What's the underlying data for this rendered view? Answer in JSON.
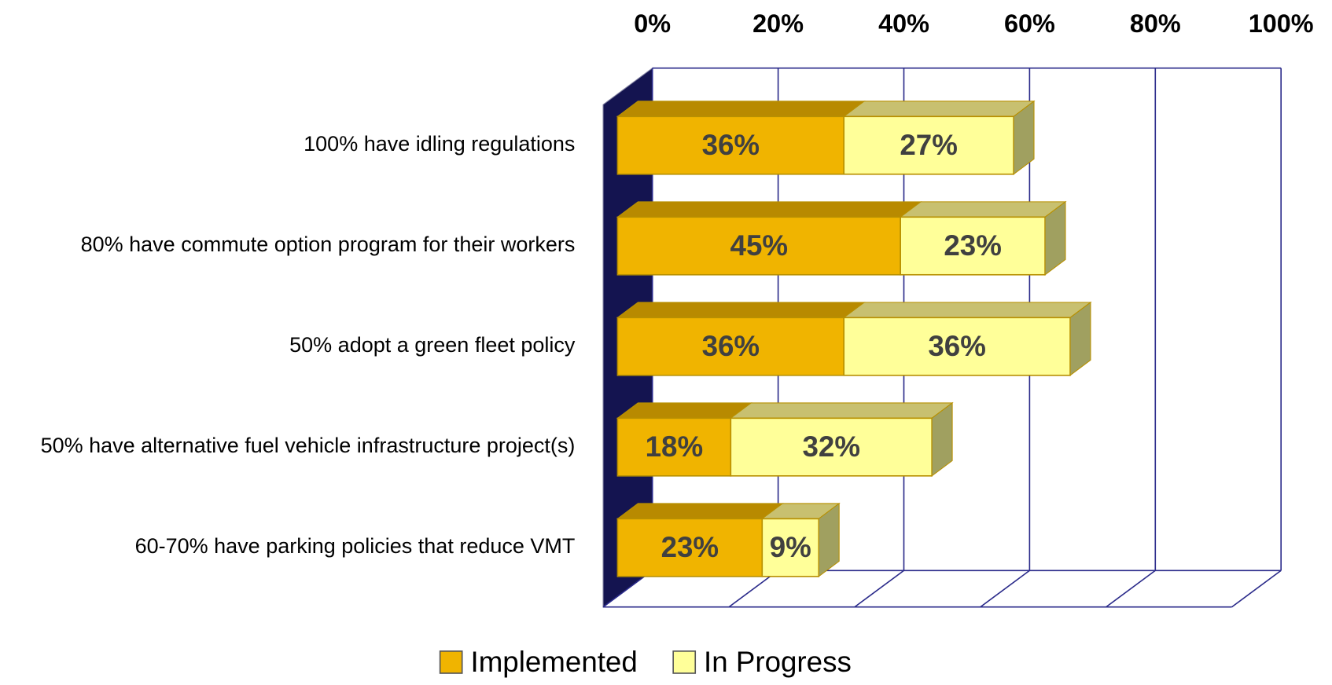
{
  "chart_data": {
    "type": "bar",
    "orientation": "horizontal",
    "stacked": true,
    "categories": [
      "100% have idling regulations",
      "80% have commute option program for their workers",
      "50% adopt a green fleet policy",
      "50% have alternative fuel vehicle infrastructure project(s)",
      "60-70% have parking policies that reduce VMT"
    ],
    "series": [
      {
        "name": "Implemented",
        "color": "#f0b400",
        "values": [
          36,
          45,
          36,
          18,
          23
        ],
        "value_labels": [
          "36%",
          "45%",
          "36%",
          "18%",
          "23%"
        ]
      },
      {
        "name": "In Progress",
        "color": "#ffff99",
        "values": [
          27,
          23,
          36,
          32,
          9
        ],
        "value_labels": [
          "27%",
          "23%",
          "36%",
          "32%",
          "9%"
        ]
      }
    ],
    "xlim": [
      0,
      100
    ],
    "xticks": [
      {
        "value": 0,
        "label": "0%"
      },
      {
        "value": 20,
        "label": "20%"
      },
      {
        "value": 40,
        "label": "40%"
      },
      {
        "value": 60,
        "label": "60%"
      },
      {
        "value": 80,
        "label": "80%"
      },
      {
        "value": 100,
        "label": "100%"
      }
    ],
    "grid": true,
    "legend": "bottom"
  }
}
